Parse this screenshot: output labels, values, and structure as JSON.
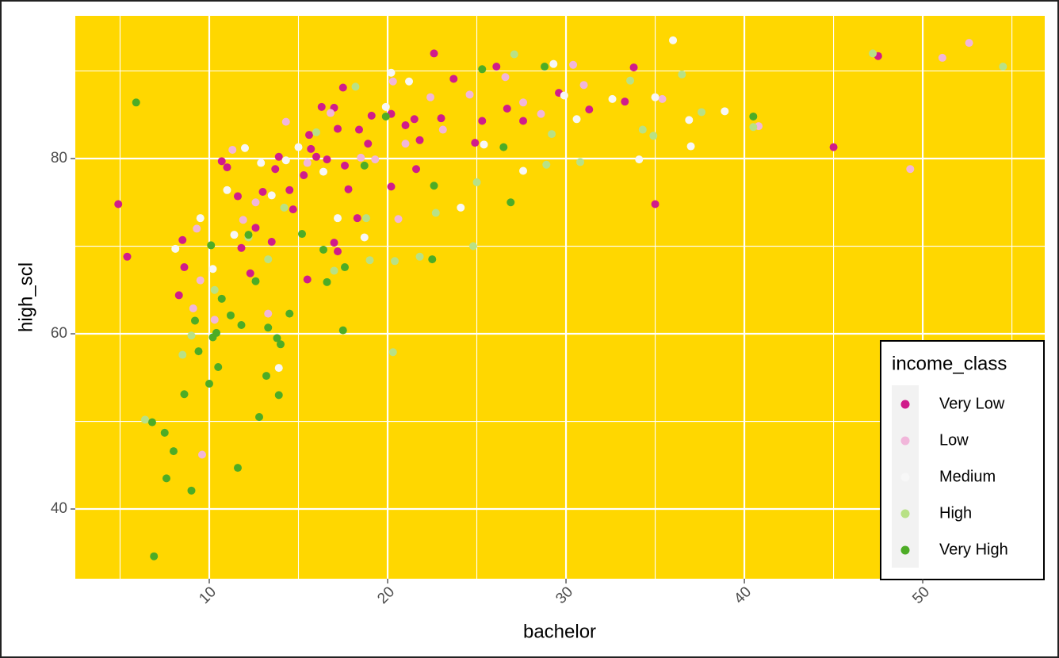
{
  "chart_data": {
    "type": "scatter",
    "x_label": "bachelor",
    "y_label": "high_scl",
    "legend_title": "income_class",
    "legend": "bottom-right",
    "grid": true,
    "background": "#ffd700",
    "xlim": [
      2.49,
      56.84
    ],
    "ylim": [
      32.04,
      96.29
    ],
    "xticks": [
      10,
      20,
      30,
      40,
      50
    ],
    "yticks": [
      40,
      60,
      80
    ],
    "series": [
      {
        "name": "Very Low",
        "color": "#d01c8b",
        "x": [
          4.9,
          5.4,
          8.3,
          8.5,
          8.6,
          10.7,
          11.0,
          11.6,
          11.8,
          12.3,
          13.0,
          13.7,
          13.9,
          14.5,
          14.7,
          15.3,
          15.5,
          15.6,
          15.7,
          16.0,
          16.3,
          16.6,
          17.0,
          17.2,
          17.5,
          17.6,
          17.8,
          18.3,
          18.4,
          18.9,
          19.1,
          20.2,
          20.2,
          21.0,
          21.5,
          21.6,
          21.8,
          22.6,
          23.0,
          23.7,
          24.9,
          25.3,
          26.1,
          26.7,
          27.6,
          29.6,
          31.3,
          33.3,
          33.8,
          35.0,
          45.0,
          47.5,
          17.0,
          17.2,
          12.6,
          13.5
        ],
        "values": [
          74.8,
          68.8,
          64.4,
          70.7,
          67.6,
          79.7,
          79.0,
          75.7,
          69.8,
          66.9,
          76.2,
          78.8,
          80.2,
          76.4,
          74.2,
          78.1,
          66.2,
          82.7,
          81.1,
          80.2,
          85.9,
          79.9,
          85.8,
          83.4,
          88.1,
          79.2,
          76.5,
          73.2,
          83.3,
          81.7,
          84.9,
          85.1,
          76.8,
          83.8,
          84.5,
          78.8,
          82.1,
          92.0,
          84.6,
          89.1,
          81.8,
          84.3,
          90.5,
          85.7,
          84.3,
          87.5,
          85.6,
          86.5,
          90.4,
          74.8,
          81.3,
          91.7,
          70.4,
          69.4,
          72.1,
          70.5
        ]
      },
      {
        "name": "Low",
        "color": "#f1b6da",
        "x": [
          9.6,
          9.1,
          9.5,
          9.3,
          10.3,
          11.3,
          12.6,
          14.3,
          15.5,
          16.8,
          18.5,
          20.3,
          20.6,
          22.4,
          24.6,
          26.6,
          27.6,
          28.6,
          30.4,
          31.0,
          35.4,
          40.8,
          49.3,
          51.1,
          52.6,
          13.3,
          11.9,
          19.3,
          23.1,
          21.0
        ],
        "values": [
          46.2,
          62.9,
          66.1,
          72.0,
          61.6,
          81.0,
          75.0,
          84.2,
          79.5,
          85.2,
          80.1,
          88.8,
          73.1,
          87.0,
          87.3,
          89.3,
          86.4,
          85.1,
          90.7,
          88.4,
          86.8,
          83.7,
          78.8,
          91.5,
          93.2,
          62.3,
          73.0,
          79.9,
          83.3,
          81.7
        ]
      },
      {
        "name": "Medium",
        "color": "#f7f7f7",
        "x": [
          8.1,
          9.5,
          10.2,
          11.0,
          12.0,
          12.9,
          13.5,
          14.3,
          15.0,
          16.4,
          17.2,
          18.7,
          20.2,
          21.2,
          24.1,
          25.4,
          27.6,
          29.3,
          29.9,
          30.6,
          32.6,
          34.1,
          35.0,
          36.0,
          36.9,
          37.0,
          38.9,
          13.9,
          11.4,
          19.9
        ],
        "values": [
          69.7,
          73.2,
          67.4,
          76.4,
          81.2,
          79.5,
          75.8,
          79.8,
          81.3,
          78.5,
          73.2,
          71.0,
          89.8,
          88.8,
          74.4,
          81.6,
          78.6,
          90.8,
          87.2,
          84.5,
          86.8,
          79.9,
          87.0,
          93.5,
          84.4,
          81.4,
          85.4,
          56.1,
          71.3,
          85.9
        ]
      },
      {
        "name": "High",
        "color": "#b8e186",
        "x": [
          6.4,
          8.5,
          9.0,
          10.3,
          12.2,
          13.3,
          14.2,
          16.0,
          18.2,
          18.8,
          19.0,
          20.3,
          20.4,
          21.8,
          22.7,
          24.8,
          25.0,
          27.1,
          28.9,
          29.2,
          30.8,
          33.6,
          34.3,
          34.9,
          36.5,
          37.6,
          40.5,
          47.2,
          54.5,
          17.0
        ],
        "values": [
          50.2,
          57.6,
          59.8,
          65.0,
          71.0,
          68.5,
          74.4,
          83.0,
          88.2,
          73.2,
          68.4,
          57.9,
          68.3,
          68.8,
          73.8,
          70.0,
          77.3,
          91.9,
          79.3,
          82.8,
          79.6,
          88.9,
          83.3,
          82.6,
          89.6,
          85.3,
          83.6,
          92.0,
          90.5,
          67.2
        ]
      },
      {
        "name": "Very High",
        "color": "#4dac26",
        "x": [
          5.9,
          6.8,
          6.9,
          7.5,
          7.6,
          8.0,
          8.6,
          9.0,
          9.2,
          9.4,
          10.0,
          10.2,
          10.4,
          10.5,
          10.7,
          11.2,
          11.6,
          11.8,
          12.2,
          12.8,
          13.2,
          13.3,
          13.8,
          13.9,
          14.0,
          14.5,
          15.2,
          16.4,
          16.6,
          17.5,
          17.6,
          18.7,
          19.9,
          22.5,
          22.6,
          25.3,
          26.5,
          26.9,
          28.8,
          40.5,
          10.1,
          12.6
        ],
        "values": [
          86.4,
          49.9,
          34.6,
          48.7,
          43.5,
          46.6,
          53.1,
          42.1,
          61.5,
          58.0,
          54.3,
          59.6,
          60.1,
          56.2,
          64.0,
          62.1,
          44.7,
          61.0,
          71.3,
          50.5,
          55.2,
          60.7,
          59.5,
          53.0,
          58.8,
          62.3,
          71.4,
          69.6,
          65.9,
          60.4,
          67.6,
          79.2,
          84.8,
          68.5,
          76.9,
          90.2,
          81.3,
          75.0,
          90.5,
          84.8,
          70.1,
          66.0
        ]
      }
    ]
  }
}
